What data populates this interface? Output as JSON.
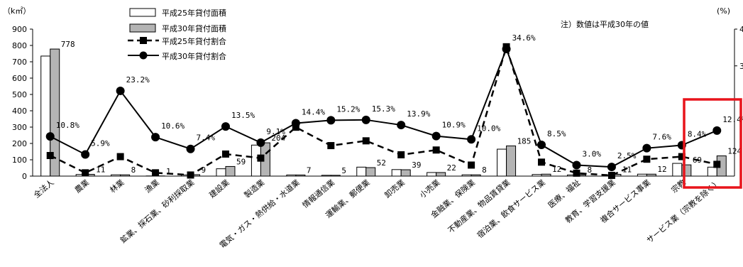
{
  "chart_data": {
    "type": "bar",
    "unit_left": "（k㎡）",
    "unit_right": "(%)",
    "note": "注）数値は平成30年の値",
    "ylim": [
      0,
      900
    ],
    "y_ticks": [
      "0",
      "100",
      "200",
      "300",
      "400",
      "500",
      "600",
      "700",
      "800",
      "900"
    ],
    "ylim_right": [
      0,
      4
    ],
    "y_ticks_right": [
      "4",
      "3"
    ],
    "categories": [
      "全法人",
      "農業",
      "林業",
      "漁業",
      "鉱業、採石業、砂利採取業",
      "建設業",
      "製造業",
      "電気・ガス・熱供給・水道業",
      "情報通信業",
      "運輸業、郵便業",
      "卸売業",
      "小売業",
      "金融業、保険業",
      "不動産業、物品賃貸業",
      "宿泊業、飲食サービス業",
      "医療、福祉",
      "教育、学習支援業",
      "複合サービス事業",
      "宗教",
      "サービス業（宗教を除く）"
    ],
    "series": [
      {
        "name": "平成25年貸付面積",
        "kind": "bar",
        "color": "#ffffff",
        "values": [
          735,
          10,
          8,
          1,
          7,
          45,
          190,
          7,
          5,
          55,
          40,
          22,
          8,
          165,
          10,
          7,
          5,
          12,
          78,
          55
        ]
      },
      {
        "name": "平成30年貸付面積",
        "kind": "bar",
        "color": "#b4b4b4",
        "values": [
          778,
          11,
          8,
          1,
          9,
          59,
          204,
          7,
          5,
          52,
          39,
          22,
          8,
          185,
          12,
          8,
          11,
          12,
          69,
          124
        ]
      },
      {
        "name": "平成25年貸付割合",
        "kind": "line",
        "style": "dashed",
        "marker": "square",
        "values": [
          5.6,
          0.9,
          5.3,
          0.9,
          0.3,
          6.0,
          4.9,
          13.3,
          8.3,
          9.6,
          5.8,
          7.1,
          3.0,
          35.2,
          3.8,
          0.8,
          0.2,
          4.6,
          5.3,
          3.2
        ]
      },
      {
        "name": "平成30年貸付割合",
        "kind": "line",
        "style": "solid",
        "marker": "circle",
        "values": [
          10.8,
          5.9,
          23.2,
          10.6,
          7.4,
          13.5,
          9.1,
          14.4,
          15.2,
          15.3,
          13.9,
          10.9,
          10.0,
          34.6,
          8.5,
          3.0,
          2.5,
          7.6,
          8.4,
          12.4
        ]
      }
    ],
    "bar_labels": [
      "778",
      "11",
      "8",
      "1",
      "9",
      "59",
      "204",
      "7",
      "5",
      "52",
      "39",
      "22",
      "8",
      "185",
      "12",
      "8",
      "11",
      "12",
      "69",
      "124"
    ],
    "pct_labels": [
      "10.8%",
      "5.9%",
      "23.2%",
      "10.6%",
      "7.4%",
      "13.5%",
      "9.1%",
      "14.4%",
      "15.2%",
      "15.3%",
      "13.9%",
      "10.9%",
      "10.0%",
      "34.6%",
      "8.5%",
      "3.0%",
      "2.5%",
      "7.6%",
      "8.4%",
      "12.4%"
    ],
    "highlight_category": "サービス業（宗教を除く）",
    "highlight_color": "#e8141b",
    "legend_position": "top-left"
  }
}
